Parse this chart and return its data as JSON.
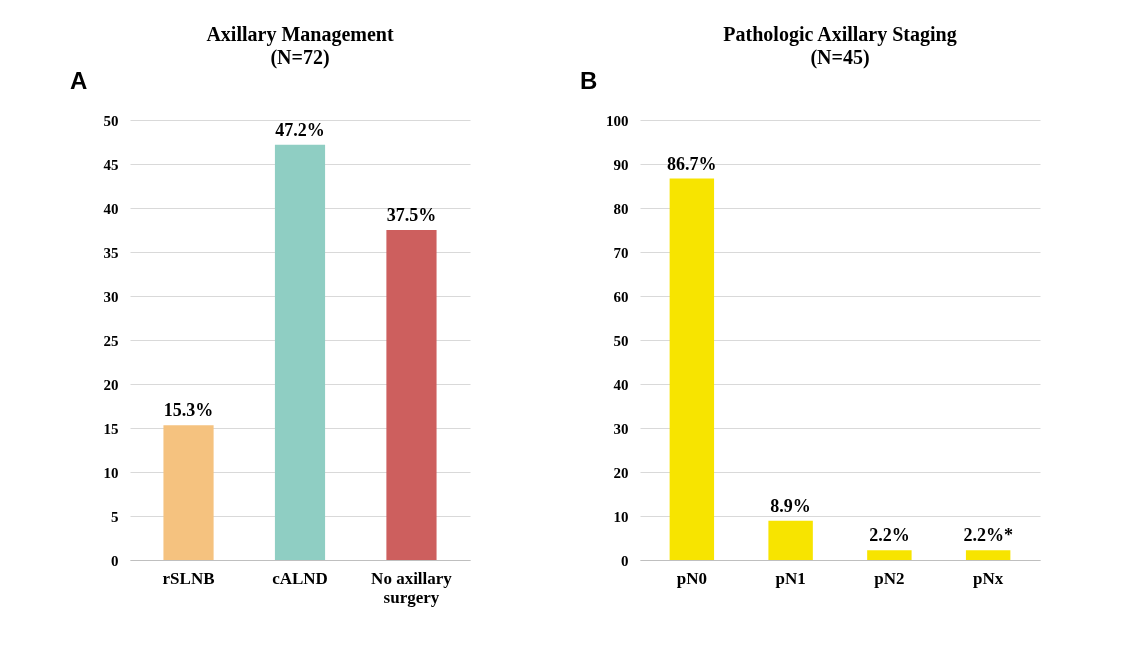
{
  "chart_data": [
    {
      "type": "bar",
      "title": "Axillary Management",
      "subtitle": "(N=72)",
      "annotations": [
        "A"
      ],
      "categories": [
        "rSLNB",
        "cALND",
        "No axillary surgery"
      ],
      "values": [
        15.3,
        47.2,
        37.5
      ],
      "colors": [
        "#f5c27f",
        "#8fcec3",
        "#cd5f5e"
      ],
      "value_labels": [
        "15.3%",
        "47.2%",
        "37.5%"
      ],
      "ylim": [
        0,
        50
      ],
      "yticks": [
        0,
        5,
        10,
        15,
        20,
        25,
        30,
        35,
        40,
        45,
        50
      ],
      "grid": "y"
    },
    {
      "type": "bar",
      "title": "Pathologic Axillary Staging",
      "subtitle": "(N=45)",
      "annotations": [
        "B"
      ],
      "categories": [
        "pN0",
        "pN1",
        "pN2",
        "pNx"
      ],
      "values": [
        86.7,
        8.9,
        2.2,
        2.2
      ],
      "colors": [
        "#f7e400",
        "#f7e400",
        "#f7e400",
        "#f7e400"
      ],
      "value_labels": [
        "86.7%",
        "8.9%",
        "2.2%",
        "2.2%*"
      ],
      "ylim": [
        0,
        100
      ],
      "yticks": [
        0,
        10,
        20,
        30,
        40,
        50,
        60,
        70,
        80,
        90,
        100
      ],
      "grid": "y"
    }
  ]
}
